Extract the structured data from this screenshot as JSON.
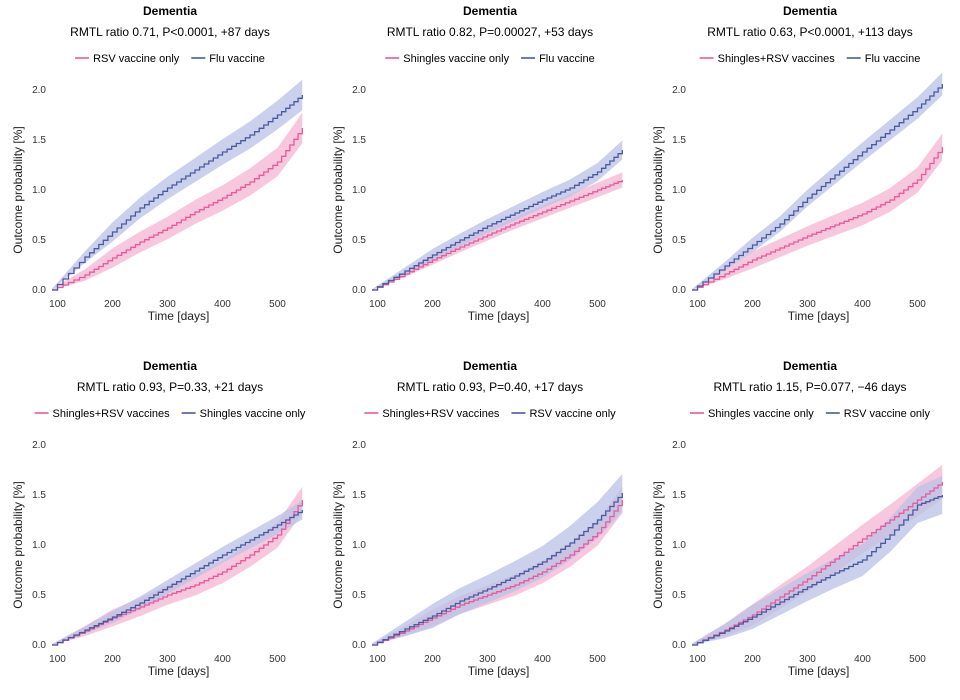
{
  "colors": {
    "pink": "#e75a9b",
    "pink_band": "#f4b5d2",
    "blue": "#4a5a9e",
    "blue_band": "#b9c1e6"
  },
  "panels": [
    {
      "title": "Dementia",
      "subtitle": "RMTL ratio 0.71, P<0.0001, +87 days",
      "legend": [
        "RSV vaccine only",
        "Flu vaccine"
      ],
      "xlabel": "Time [days]",
      "ylabel": "Outcome probability [%]",
      "x_ticks": [
        "100",
        "200",
        "300",
        "400",
        "500"
      ],
      "y_ticks": [
        "0.0",
        "0.5",
        "1.0",
        "1.5",
        "2.0"
      ],
      "chart_data": {
        "type": "line",
        "xlim": [
          90,
          550
        ],
        "ylim": [
          0,
          2.0
        ],
        "series": [
          {
            "name": "RSV vaccine only",
            "color": "pink",
            "x": [
              90,
              150,
              200,
              250,
              300,
              350,
              400,
              450,
              500,
              545
            ],
            "y": [
              0,
              0.15,
              0.32,
              0.48,
              0.62,
              0.78,
              0.92,
              1.08,
              1.28,
              1.62
            ],
            "band": 0.08
          },
          {
            "name": "Flu vaccine",
            "color": "blue",
            "x": [
              90,
              150,
              200,
              250,
              300,
              350,
              400,
              450,
              500,
              545
            ],
            "y": [
              0,
              0.33,
              0.58,
              0.82,
              1.02,
              1.2,
              1.38,
              1.55,
              1.75,
              1.95
            ],
            "band": 0.08
          }
        ]
      }
    },
    {
      "title": "Dementia",
      "subtitle": "RMTL ratio 0.82, P=0.00027, +53 days",
      "legend": [
        "Shingles vaccine only",
        "Flu vaccine"
      ],
      "xlabel": "Time [days]",
      "ylabel": "Outcome probability [%]",
      "x_ticks": [
        "100",
        "200",
        "300",
        "400",
        "500"
      ],
      "y_ticks": [
        "0.0",
        "0.5",
        "1.0",
        "1.5",
        "2.0"
      ],
      "chart_data": {
        "type": "line",
        "xlim": [
          90,
          550
        ],
        "ylim": [
          0,
          2.0
        ],
        "series": [
          {
            "name": "Shingles vaccine only",
            "color": "pink",
            "x": [
              90,
              150,
              200,
              250,
              300,
              350,
              400,
              450,
              500,
              545
            ],
            "y": [
              0,
              0.16,
              0.3,
              0.43,
              0.55,
              0.67,
              0.78,
              0.89,
              1.0,
              1.1
            ],
            "band": 0.04
          },
          {
            "name": "Flu vaccine",
            "color": "blue",
            "x": [
              90,
              150,
              200,
              250,
              300,
              350,
              400,
              450,
              500,
              545
            ],
            "y": [
              0,
              0.19,
              0.35,
              0.5,
              0.64,
              0.77,
              0.9,
              1.02,
              1.18,
              1.4
            ],
            "band": 0.05
          }
        ]
      }
    },
    {
      "title": "Dementia",
      "subtitle": "RMTL ratio 0.63, P<0.0001, +113 days",
      "legend": [
        "Shingles+RSV vaccines",
        "Flu vaccine"
      ],
      "xlabel": "Time [days]",
      "ylabel": "Outcome probability [%]",
      "x_ticks": [
        "100",
        "200",
        "300",
        "400",
        "500"
      ],
      "y_ticks": [
        "0.0",
        "0.5",
        "1.0",
        "1.5",
        "2.0"
      ],
      "chart_data": {
        "type": "line",
        "xlim": [
          90,
          550
        ],
        "ylim": [
          0,
          2.0
        ],
        "series": [
          {
            "name": "Shingles+RSV vaccines",
            "color": "pink",
            "x": [
              90,
              150,
              200,
              250,
              300,
              350,
              400,
              450,
              500,
              545
            ],
            "y": [
              0,
              0.16,
              0.3,
              0.42,
              0.54,
              0.65,
              0.76,
              0.9,
              1.1,
              1.43
            ],
            "band": 0.07
          },
          {
            "name": "Flu vaccine",
            "color": "blue",
            "x": [
              90,
              150,
              200,
              250,
              300,
              350,
              400,
              450,
              500,
              545
            ],
            "y": [
              0,
              0.24,
              0.45,
              0.66,
              0.92,
              1.15,
              1.38,
              1.6,
              1.82,
              2.06
            ],
            "band": 0.06
          }
        ]
      }
    },
    {
      "title": "Dementia",
      "subtitle": "RMTL ratio 0.93, P=0.33, +21 days",
      "legend": [
        "Shingles+RSV vaccines",
        "Shingles vaccine only"
      ],
      "xlabel": "Time [days]",
      "ylabel": "Outcome probability [%]",
      "x_ticks": [
        "100",
        "200",
        "300",
        "400",
        "500"
      ],
      "y_ticks": [
        "0.0",
        "0.5",
        "1.0",
        "1.5",
        "2.0"
      ],
      "chart_data": {
        "type": "line",
        "xlim": [
          90,
          550
        ],
        "ylim": [
          0,
          2.0
        ],
        "series": [
          {
            "name": "Shingles+RSV vaccines",
            "color": "pink",
            "x": [
              90,
              150,
              200,
              250,
              300,
              350,
              400,
              450,
              500,
              545
            ],
            "y": [
              0,
              0.14,
              0.27,
              0.38,
              0.5,
              0.6,
              0.73,
              0.9,
              1.1,
              1.45
            ],
            "band": 0.07
          },
          {
            "name": "Shingles vaccine only",
            "color": "blue",
            "x": [
              90,
              150,
              200,
              250,
              300,
              350,
              400,
              450,
              500,
              545
            ],
            "y": [
              0,
              0.15,
              0.28,
              0.42,
              0.58,
              0.74,
              0.9,
              1.05,
              1.2,
              1.35
            ],
            "band": 0.05
          }
        ]
      }
    },
    {
      "title": "Dementia",
      "subtitle": "RMTL ratio 0.93, P=0.40, +17 days",
      "legend": [
        "Shingles+RSV vaccines",
        "RSV vaccine only"
      ],
      "xlabel": "Time [days]",
      "ylabel": "Outcome probability [%]",
      "x_ticks": [
        "100",
        "200",
        "300",
        "400",
        "500"
      ],
      "y_ticks": [
        "0.0",
        "0.5",
        "1.0",
        "1.5",
        "2.0"
      ],
      "chart_data": {
        "type": "line",
        "xlim": [
          90,
          550
        ],
        "ylim": [
          0,
          2.0
        ],
        "series": [
          {
            "name": "Shingles+RSV vaccines",
            "color": "pink",
            "x": [
              90,
              150,
              200,
              250,
              300,
              350,
              400,
              450,
              500,
              545
            ],
            "y": [
              0,
              0.14,
              0.27,
              0.4,
              0.5,
              0.6,
              0.73,
              0.9,
              1.12,
              1.45
            ],
            "band": 0.07
          },
          {
            "name": "RSV vaccine only",
            "color": "blue",
            "x": [
              90,
              150,
              200,
              250,
              300,
              350,
              400,
              450,
              500,
              545
            ],
            "y": [
              0,
              0.16,
              0.29,
              0.44,
              0.56,
              0.69,
              0.83,
              1.02,
              1.25,
              1.52
            ],
            "band": 0.1
          }
        ]
      }
    },
    {
      "title": "Dementia",
      "subtitle": "RMTL ratio 1.15, P=0.077, −46 days",
      "legend": [
        "Shingles vaccine only",
        "RSV vaccine only"
      ],
      "xlabel": "Time [days]",
      "ylabel": "Outcome probability [%]",
      "x_ticks": [
        "100",
        "200",
        "300",
        "400",
        "500"
      ],
      "y_ticks": [
        "0.0",
        "0.5",
        "1.0",
        "1.5",
        "2.0"
      ],
      "chart_data": {
        "type": "line",
        "xlim": [
          90,
          550
        ],
        "ylim": [
          0,
          2.0
        ],
        "series": [
          {
            "name": "Shingles vaccine only",
            "color": "pink",
            "x": [
              90,
              150,
              200,
              250,
              300,
              350,
              400,
              450,
              500,
              545
            ],
            "y": [
              0,
              0.15,
              0.3,
              0.48,
              0.66,
              0.86,
              1.06,
              1.25,
              1.45,
              1.63
            ],
            "band": 0.09
          },
          {
            "name": "RSV vaccine only",
            "color": "blue",
            "x": [
              90,
              150,
              200,
              250,
              300,
              350,
              400,
              450,
              500,
              545
            ],
            "y": [
              0,
              0.14,
              0.28,
              0.43,
              0.58,
              0.72,
              0.85,
              1.1,
              1.4,
              1.5
            ],
            "band": 0.1
          }
        ]
      }
    }
  ]
}
